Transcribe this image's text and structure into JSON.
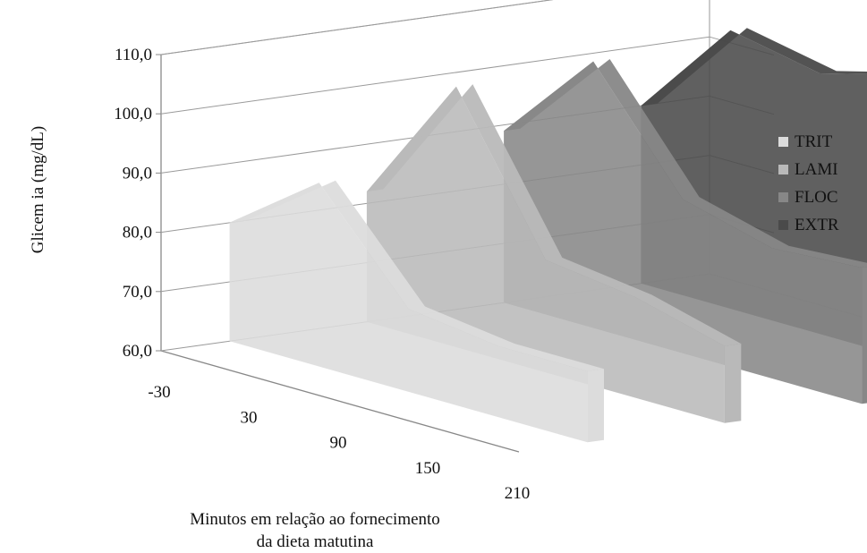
{
  "chart_data": {
    "type": "area",
    "categories": [
      "-30",
      "30",
      "90",
      "150",
      "210"
    ],
    "series": [
      {
        "name": "TRIT",
        "values": [
          80.0,
          91.0,
          74.0,
          72.0,
          72.0
        ],
        "color": "#dcdcdc"
      },
      {
        "name": "LAMI",
        "values": [
          82.0,
          104.0,
          79.0,
          77.0,
          73.0
        ],
        "color": "#b9b9b9"
      },
      {
        "name": "FLOC",
        "values": [
          89.0,
          105.0,
          86.0,
          82.0,
          83.0
        ],
        "color": "#878787"
      },
      {
        "name": "EXTR",
        "values": [
          90.0,
          107.0,
          104.0,
          108.0,
          94.0
        ],
        "color": "#4a4a4a"
      }
    ],
    "y_ticks": [
      "60,0",
      "70,0",
      "80,0",
      "90,0",
      "100,0",
      "110,0"
    ],
    "ylim": [
      60,
      110
    ],
    "ylabel": "Glicem ia (mg/dL)",
    "xlabel_line1": "Minutos em relação ao fornecimento",
    "xlabel_line2": "da dieta matutina",
    "legend_position": "right",
    "grid": true
  }
}
